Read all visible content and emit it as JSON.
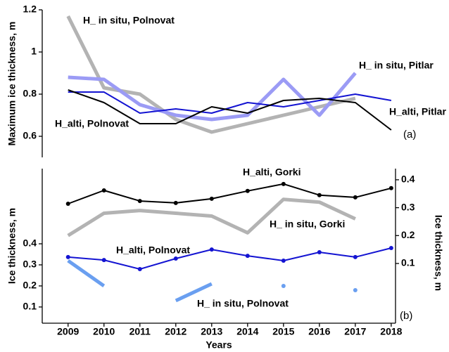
{
  "chart_data": [
    {
      "type": "line",
      "panel_label": "(a)",
      "ylabel": "Maximum ice thickness, m",
      "x": [
        2009,
        2010,
        2011,
        2012,
        2013,
        2014,
        2015,
        2016,
        2017,
        2018
      ],
      "xlim": [
        2008.28,
        2018.12
      ],
      "ylim": [
        0.5,
        1.2
      ],
      "yticks": [
        0.6,
        0.8,
        1,
        1.2
      ],
      "series": [
        {
          "name": "H_ in situ, Polnovat",
          "color": "#b3b3b3",
          "linewidth": 5,
          "values": [
            1.17,
            0.83,
            0.8,
            0.68,
            0.62,
            0.66,
            0.7,
            0.74,
            0.78,
            null
          ]
        },
        {
          "name": "H_ in situ, Pitlar",
          "color": "#9b9bf5",
          "linewidth": 5,
          "values": [
            0.88,
            0.87,
            0.75,
            0.7,
            0.68,
            0.7,
            0.87,
            0.7,
            0.9,
            null
          ]
        },
        {
          "name": "H_alti, Pitlar",
          "color": "#1414d2",
          "linewidth": 2,
          "values": [
            0.81,
            0.81,
            0.71,
            0.73,
            0.71,
            0.76,
            0.74,
            0.77,
            0.8,
            0.77
          ]
        },
        {
          "name": "H_alti, Polnovat",
          "color": "#000000",
          "linewidth": 2,
          "values": [
            0.82,
            0.76,
            0.66,
            0.66,
            0.74,
            0.71,
            0.77,
            0.78,
            0.76,
            0.63
          ]
        }
      ]
    },
    {
      "type": "line",
      "panel_label": "(b)",
      "xlabel": "Years",
      "ylabel": "Ice thickness, m",
      "y2label": "Ice thickness, m",
      "x": [
        2009,
        2010,
        2011,
        2012,
        2013,
        2014,
        2015,
        2016,
        2017,
        2018
      ],
      "xlim": [
        2008.28,
        2018.12
      ],
      "xticks": [
        2009,
        2010,
        2011,
        2012,
        2013,
        2014,
        2015,
        2016,
        2017,
        2018
      ],
      "ylim": [
        0.023,
        0.757
      ],
      "yticks": [
        0.1,
        0.2,
        0.3,
        0.4
      ],
      "y2lim": [
        -0.114,
        0.44
      ],
      "y2ticks": [
        0.1,
        0.2,
        0.3,
        0.4
      ],
      "series": [
        {
          "name": "H_alti, Gorki",
          "color": "#000000",
          "linewidth": 2,
          "marker": "o",
          "axis": "y2",
          "values": [
            0.314,
            0.362,
            0.324,
            0.317,
            0.332,
            0.36,
            0.385,
            0.345,
            0.337,
            0.37
          ]
        },
        {
          "name": "H_ in situ, Gorki",
          "color": "#b3b3b3",
          "linewidth": 5,
          "axis": "y2",
          "values": [
            0.2,
            0.28,
            0.29,
            0.28,
            0.27,
            0.21,
            0.33,
            0.32,
            0.26,
            null
          ]
        },
        {
          "name": "H_alti, Polnovat",
          "color": "#1414d2",
          "linewidth": 2,
          "marker": "o",
          "values": [
            0.337,
            0.323,
            0.28,
            0.33,
            0.373,
            0.343,
            0.32,
            0.36,
            0.337,
            0.38
          ]
        },
        {
          "name": "H_ in situ, Polnovat",
          "color": "#6a9ff0",
          "linewidth": 5,
          "values": [
            0.32,
            0.2,
            null,
            0.13,
            0.21,
            null,
            0.2,
            null,
            0.18,
            null
          ]
        }
      ]
    }
  ]
}
